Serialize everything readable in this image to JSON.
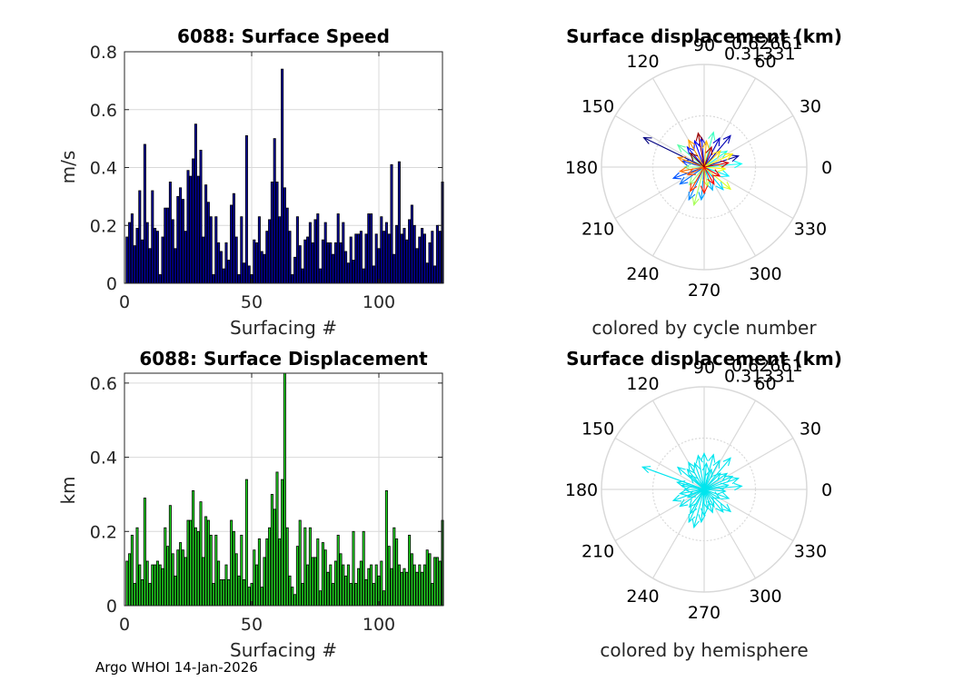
{
  "figure": {
    "footer": "Argo WHOI 14-Jan-2026",
    "colors": {
      "speed_bar": "#0000a0",
      "disp_bar": "#22dd22",
      "hemisphere_arrow": "#00e5ee",
      "grid": "#d9d9d9",
      "axis": "#262626"
    }
  },
  "chart_data": [
    {
      "id": "speed",
      "type": "bar",
      "title": "6088: Surface Speed",
      "xlabel": "Surfacing #",
      "ylabel": "m/s",
      "xlim": [
        0,
        125
      ],
      "ylim": [
        0,
        0.8
      ],
      "xticks": [
        "0",
        "50",
        "100"
      ],
      "yticks": [
        "0",
        "0.2",
        "0.4",
        "0.6",
        "0.8"
      ],
      "grid": true,
      "values": [
        0.16,
        0.21,
        0.24,
        0.13,
        0.19,
        0.32,
        0.15,
        0.48,
        0.21,
        0.12,
        0.32,
        0.19,
        0.18,
        0.03,
        0.16,
        0.26,
        0.26,
        0.35,
        0.22,
        0.12,
        0.3,
        0.33,
        0.29,
        0.18,
        0.39,
        0.37,
        0.43,
        0.55,
        0.37,
        0.46,
        0.16,
        0.34,
        0.28,
        0.23,
        0.03,
        0.23,
        0.14,
        0.11,
        0.05,
        0.14,
        0.08,
        0.27,
        0.31,
        0.16,
        0.03,
        0.23,
        0.07,
        0.51,
        0.06,
        0.03,
        0.15,
        0.14,
        0.23,
        0.11,
        0.1,
        0.18,
        0.22,
        0.35,
        0.5,
        0.35,
        0.23,
        0.74,
        0.33,
        0.26,
        0.18,
        0.03,
        0.09,
        0.23,
        0.13,
        0.05,
        0.15,
        0.16,
        0.21,
        0.14,
        0.22,
        0.24,
        0.05,
        0.15,
        0.21,
        0.14,
        0.14,
        0.1,
        0.14,
        0.24,
        0.14,
        0.21,
        0.11,
        0.07,
        0.16,
        0.08,
        0.17,
        0.17,
        0.18,
        0.05,
        0.17,
        0.24,
        0.24,
        0.06,
        0.17,
        0.12,
        0.23,
        0.18,
        0.21,
        0.17,
        0.41,
        0.1,
        0.2,
        0.42,
        0.17,
        0.19,
        0.15,
        0.22,
        0.27,
        0.2,
        0.12,
        0.16,
        0.19,
        0.17,
        0.07,
        0.14,
        0.18,
        0.06,
        0.2,
        0.18,
        0.35
      ]
    },
    {
      "id": "polar-cycle",
      "type": "polar-quiver",
      "title": "Surface displacement (km)",
      "caption": "colored by cycle number",
      "rmax": 0.62661,
      "r_tick_labels": [
        "0.31331",
        "0.62661"
      ],
      "angle_labels": [
        "0",
        "30",
        "60",
        "90",
        "120",
        "150",
        "180",
        "210",
        "240",
        "270",
        "300",
        "330"
      ],
      "color_scheme": "jet (cycle number)",
      "vectors": [
        {
          "angle": 154,
          "length": 0.41
        },
        {
          "angle": 18,
          "length": 0.22
        },
        {
          "angle": 50,
          "length": 0.25
        },
        {
          "angle": 62,
          "length": 0.2
        },
        {
          "angle": 95,
          "length": 0.18
        },
        {
          "angle": 110,
          "length": 0.17
        },
        {
          "angle": 130,
          "length": 0.16
        },
        {
          "angle": 165,
          "length": 0.14
        },
        {
          "angle": 200,
          "length": 0.2
        },
        {
          "angle": 215,
          "length": 0.18
        },
        {
          "angle": 245,
          "length": 0.22
        },
        {
          "angle": 265,
          "length": 0.2
        },
        {
          "angle": 290,
          "length": 0.15
        },
        {
          "angle": 310,
          "length": 0.18
        },
        {
          "angle": 340,
          "length": 0.16
        },
        {
          "angle": 5,
          "length": 0.23
        },
        {
          "angle": 35,
          "length": 0.17
        },
        {
          "angle": 75,
          "length": 0.22
        },
        {
          "angle": 140,
          "length": 0.21
        },
        {
          "angle": 180,
          "length": 0.12
        },
        {
          "angle": 230,
          "length": 0.14
        },
        {
          "angle": 255,
          "length": 0.24
        },
        {
          "angle": 280,
          "length": 0.12
        },
        {
          "angle": 320,
          "length": 0.21
        },
        {
          "angle": 355,
          "length": 0.13
        },
        {
          "angle": 25,
          "length": 0.19
        },
        {
          "angle": 45,
          "length": 0.14
        },
        {
          "angle": 85,
          "length": 0.16
        },
        {
          "angle": 120,
          "length": 0.19
        },
        {
          "angle": 160,
          "length": 0.17
        },
        {
          "angle": 190,
          "length": 0.15
        },
        {
          "angle": 205,
          "length": 0.11
        },
        {
          "angle": 240,
          "length": 0.17
        },
        {
          "angle": 270,
          "length": 0.16
        },
        {
          "angle": 300,
          "length": 0.12
        },
        {
          "angle": 330,
          "length": 0.11
        },
        {
          "angle": 10,
          "length": 0.15
        },
        {
          "angle": 70,
          "length": 0.13
        },
        {
          "angle": 100,
          "length": 0.21
        },
        {
          "angle": 135,
          "length": 0.12
        }
      ]
    },
    {
      "id": "displacement",
      "type": "bar",
      "title": "6088: Surface Displacement",
      "xlabel": "Surfacing #",
      "ylabel": "km",
      "xlim": [
        0,
        125
      ],
      "ylim": [
        0,
        0.62661
      ],
      "xticks": [
        "0",
        "50",
        "100"
      ],
      "yticks": [
        "0",
        "0.2",
        "0.4",
        "0.6"
      ],
      "grid": true,
      "values": [
        0.12,
        0.14,
        0.19,
        0.06,
        0.21,
        0.11,
        0.07,
        0.29,
        0.12,
        0.06,
        0.11,
        0.11,
        0.12,
        0.11,
        0.1,
        0.21,
        0.16,
        0.27,
        0.14,
        0.08,
        0.15,
        0.17,
        0.15,
        0.13,
        0.23,
        0.23,
        0.31,
        0.21,
        0.2,
        0.28,
        0.13,
        0.24,
        0.23,
        0.19,
        0.06,
        0.19,
        0.12,
        0.07,
        0.07,
        0.11,
        0.07,
        0.23,
        0.2,
        0.14,
        0.08,
        0.19,
        0.07,
        0.34,
        0.05,
        0.06,
        0.15,
        0.11,
        0.18,
        0.05,
        0.13,
        0.18,
        0.21,
        0.3,
        0.26,
        0.36,
        0.18,
        0.34,
        0.63,
        0.21,
        0.08,
        0.05,
        0.03,
        0.16,
        0.23,
        0.06,
        0.21,
        0.11,
        0.21,
        0.13,
        0.13,
        0.18,
        0.04,
        0.17,
        0.15,
        0.09,
        0.11,
        0.06,
        0.12,
        0.19,
        0.14,
        0.11,
        0.08,
        0.11,
        0.06,
        0.2,
        0.06,
        0.1,
        0.12,
        0.2,
        0.07,
        0.1,
        0.11,
        0.06,
        0.11,
        0.08,
        0.12,
        0.04,
        0.31,
        0.16,
        0.1,
        0.21,
        0.18,
        0.11,
        0.09,
        0.1,
        0.09,
        0.19,
        0.14,
        0.11,
        0.09,
        0.11,
        0.09,
        0.11,
        0.15,
        0.14,
        0.06,
        0.13,
        0.13,
        0.12,
        0.23
      ]
    },
    {
      "id": "polar-hemisphere",
      "type": "polar-quiver",
      "title": "Surface displacement (km)",
      "caption": "colored by hemisphere",
      "rmax": 0.62661,
      "r_tick_labels": [
        "0.31331",
        "0.62661"
      ],
      "angle_labels": [
        "0",
        "30",
        "60",
        "90",
        "120",
        "150",
        "180",
        "210",
        "240",
        "270",
        "300",
        "330"
      ],
      "color_scheme": "single color (hemisphere)",
      "vectors": [
        {
          "angle": 160,
          "length": 0.4
        },
        {
          "angle": 18,
          "length": 0.22
        },
        {
          "angle": 50,
          "length": 0.25
        },
        {
          "angle": 62,
          "length": 0.2
        },
        {
          "angle": 90,
          "length": 0.22
        },
        {
          "angle": 110,
          "length": 0.17
        },
        {
          "angle": 130,
          "length": 0.16
        },
        {
          "angle": 170,
          "length": 0.14
        },
        {
          "angle": 200,
          "length": 0.2
        },
        {
          "angle": 215,
          "length": 0.18
        },
        {
          "angle": 245,
          "length": 0.22
        },
        {
          "angle": 265,
          "length": 0.2
        },
        {
          "angle": 290,
          "length": 0.15
        },
        {
          "angle": 310,
          "length": 0.18
        },
        {
          "angle": 340,
          "length": 0.16
        },
        {
          "angle": 5,
          "length": 0.23
        },
        {
          "angle": 35,
          "length": 0.17
        },
        {
          "angle": 75,
          "length": 0.22
        },
        {
          "angle": 140,
          "length": 0.21
        },
        {
          "angle": 180,
          "length": 0.12
        },
        {
          "angle": 230,
          "length": 0.14
        },
        {
          "angle": 255,
          "length": 0.24
        },
        {
          "angle": 280,
          "length": 0.12
        },
        {
          "angle": 320,
          "length": 0.21
        },
        {
          "angle": 355,
          "length": 0.13
        },
        {
          "angle": 25,
          "length": 0.19
        },
        {
          "angle": 45,
          "length": 0.14
        },
        {
          "angle": 85,
          "length": 0.16
        },
        {
          "angle": 120,
          "length": 0.19
        },
        {
          "angle": 165,
          "length": 0.17
        },
        {
          "angle": 190,
          "length": 0.15
        },
        {
          "angle": 205,
          "length": 0.11
        },
        {
          "angle": 240,
          "length": 0.17
        },
        {
          "angle": 270,
          "length": 0.16
        },
        {
          "angle": 300,
          "length": 0.12
        },
        {
          "angle": 330,
          "length": 0.11
        },
        {
          "angle": 10,
          "length": 0.15
        },
        {
          "angle": 70,
          "length": 0.13
        },
        {
          "angle": 100,
          "length": 0.21
        },
        {
          "angle": 135,
          "length": 0.12
        }
      ]
    }
  ]
}
